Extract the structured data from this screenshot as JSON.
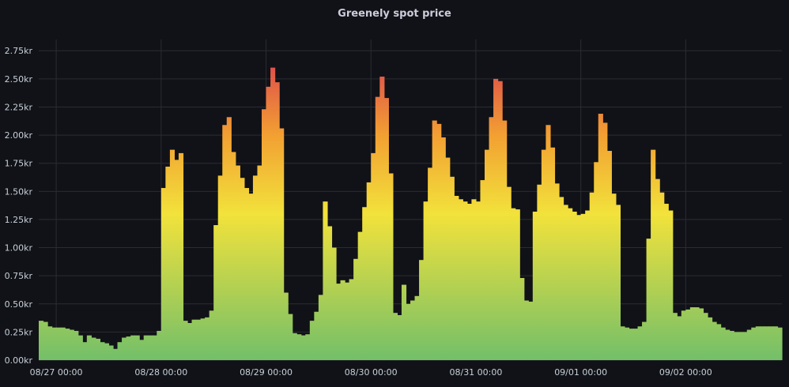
{
  "panel": {
    "title": "Greenely spot price"
  },
  "chart_data": {
    "type": "area",
    "title": "Greenely spot price",
    "xlabel": "",
    "ylabel": "",
    "y_unit": "kr",
    "ylim": [
      0,
      2.85
    ],
    "y_ticks": [
      "0.00kr",
      "0.25kr",
      "0.50kr",
      "0.75kr",
      "1.00kr",
      "1.25kr",
      "1.50kr",
      "1.75kr",
      "2.00kr",
      "2.25kr",
      "2.50kr",
      "2.75kr"
    ],
    "x_ticks": [
      "08/27 00:00",
      "08/28 00:00",
      "08/29 00:00",
      "08/30 00:00",
      "08/31 00:00",
      "09/01 00:00",
      "09/02 00:00"
    ],
    "x_start": "08/26 20:00",
    "interval_hours": 1,
    "grid": true,
    "legend": "none",
    "gradient_colors": {
      "low": "#73bf69",
      "mid": "#f2e23b",
      "high_mid": "#f2a032",
      "high": "#e0524a"
    },
    "series": [
      {
        "values": [
          0.35,
          0.34,
          0.3,
          0.29,
          0.29,
          0.29,
          0.28,
          0.27,
          0.26,
          0.22,
          0.16,
          0.22,
          0.2,
          0.19,
          0.16,
          0.15,
          0.13,
          0.1,
          0.16,
          0.2,
          0.21,
          0.22,
          0.22,
          0.18,
          0.22,
          0.22,
          0.22,
          0.26,
          1.53,
          1.72,
          1.87,
          1.78,
          1.84,
          0.35,
          0.33,
          0.36,
          0.36,
          0.37,
          0.38,
          0.44,
          1.2,
          1.64,
          2.09,
          2.16,
          1.85,
          1.73,
          1.62,
          1.53,
          1.48,
          1.64,
          1.73,
          2.23,
          2.43,
          2.6,
          2.47,
          2.06,
          0.6,
          0.41,
          0.24,
          0.23,
          0.22,
          0.23,
          0.35,
          0.43,
          0.58,
          1.41,
          1.19,
          1.0,
          0.68,
          0.71,
          0.69,
          0.72,
          0.9,
          1.14,
          1.36,
          1.58,
          1.84,
          2.34,
          2.52,
          2.33,
          1.66,
          0.42,
          0.4,
          0.67,
          0.5,
          0.53,
          0.57,
          0.89,
          1.41,
          1.71,
          2.13,
          2.1,
          1.98,
          1.8,
          1.63,
          1.46,
          1.43,
          1.41,
          1.39,
          1.43,
          1.41,
          1.6,
          1.87,
          2.16,
          2.5,
          2.48,
          2.13,
          1.54,
          1.35,
          1.34,
          0.73,
          0.53,
          0.52,
          1.32,
          1.56,
          1.87,
          2.09,
          1.89,
          1.57,
          1.45,
          1.38,
          1.35,
          1.32,
          1.29,
          1.3,
          1.33,
          1.49,
          1.76,
          2.19,
          2.11,
          1.86,
          1.48,
          1.38,
          0.3,
          0.29,
          0.28,
          0.28,
          0.3,
          0.34,
          1.08,
          1.87,
          1.61,
          1.49,
          1.39,
          1.33,
          0.42,
          0.39,
          0.44,
          0.45,
          0.47,
          0.47,
          0.46,
          0.42,
          0.38,
          0.34,
          0.32,
          0.29,
          0.27,
          0.26,
          0.25,
          0.25,
          0.25,
          0.27,
          0.29,
          0.3,
          0.3,
          0.3,
          0.3,
          0.3,
          0.29
        ]
      }
    ]
  }
}
